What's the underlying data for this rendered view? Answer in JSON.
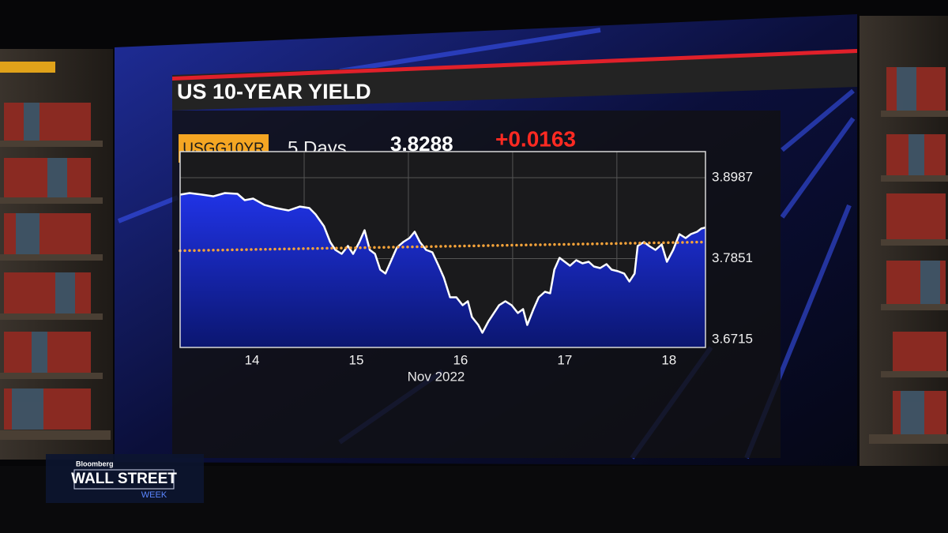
{
  "chart_data": {
    "type": "area",
    "title": "US 10-YEAR YIELD",
    "ticker": "USGG10YR",
    "period": "5 Days",
    "last_value": 3.8288,
    "change": "+0.0163",
    "x_label": "Nov 2022",
    "x": [
      13.31,
      13.4,
      13.52,
      13.63,
      13.74,
      13.86,
      13.93,
      14.01,
      14.12,
      14.23,
      14.35,
      14.46,
      14.55,
      14.61,
      14.69,
      14.75,
      14.8,
      14.86,
      14.92,
      14.97,
      15.03,
      15.08,
      15.13,
      15.18,
      15.23,
      15.28,
      15.33,
      15.39,
      15.45,
      15.51,
      15.56,
      15.61,
      15.67,
      15.73,
      15.79,
      15.84,
      15.9,
      15.96,
      16.02,
      16.07,
      16.11,
      16.17,
      16.21,
      16.27,
      16.32,
      16.37,
      16.43,
      16.49,
      16.55,
      16.6,
      16.64,
      16.7,
      16.75,
      16.81,
      16.86,
      16.9,
      16.95,
      17.0,
      17.05,
      17.11,
      17.17,
      17.23,
      17.28,
      17.34,
      17.4,
      17.45,
      17.51,
      17.57,
      17.62,
      17.67,
      17.7,
      17.76,
      17.81,
      17.87,
      17.93,
      17.98,
      18.04,
      18.1,
      18.16,
      18.21,
      18.27,
      18.31,
      18.35
    ],
    "series": [
      {
        "color": "#ffffff",
        "fill": "#1b2cd8",
        "values": [
          3.8749,
          3.8771,
          3.8749,
          3.8726,
          3.8771,
          3.876,
          3.8671,
          3.8693,
          3.8604,
          3.856,
          3.8527,
          3.8582,
          3.856,
          3.8472,
          3.8305,
          3.8084,
          3.7973,
          3.7918,
          3.8028,
          3.7918,
          3.8084,
          3.825,
          3.7973,
          3.7918,
          3.7696,
          3.7641,
          3.7807,
          3.8006,
          3.8084,
          3.8139,
          3.8228,
          3.8084,
          3.7973,
          3.794,
          3.7751,
          3.7585,
          3.7308,
          3.7308,
          3.7197,
          3.7253,
          3.7031,
          3.692,
          3.681,
          3.6976,
          3.7087,
          3.7197,
          3.7253,
          3.7197,
          3.7087,
          3.7142,
          3.692,
          3.7142,
          3.7308,
          3.7386,
          3.7364,
          3.7696,
          3.7862,
          3.7807,
          3.7751,
          3.7829,
          3.7785,
          3.7807,
          3.774,
          3.7718,
          3.7773,
          3.7696,
          3.7674,
          3.7641,
          3.753,
          3.7641,
          3.8028,
          3.8084,
          3.8028,
          3.7973,
          3.805,
          3.7807,
          3.7973,
          3.8195,
          3.8139,
          3.8195,
          3.8228,
          3.8272,
          3.8288
        ]
      }
    ],
    "reference_line": {
      "color": "#f7a43a",
      "values": [
        3.7962,
        3.8084
      ]
    },
    "xlim": [
      13.31,
      18.35
    ],
    "xticks": [
      14,
      15,
      16,
      17,
      18
    ],
    "xgrid": [
      14.5,
      15.5,
      16.5,
      17.5
    ],
    "ylim": [
      3.6604,
      3.9353
    ],
    "yticks": [
      3.6715,
      3.7851,
      3.8987
    ],
    "grid": true
  },
  "logo": {
    "brand": "Bloomberg",
    "line1": "WALL STREET",
    "line2": "WEEK"
  }
}
